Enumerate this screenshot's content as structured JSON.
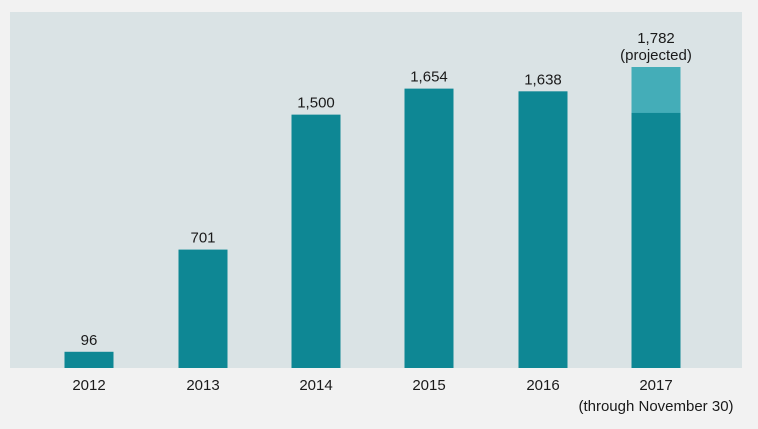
{
  "chart_data": {
    "type": "bar",
    "categories": [
      "2012",
      "2013",
      "2014",
      "2015",
      "2016",
      "2017"
    ],
    "category_sublabels": [
      "",
      "",
      "",
      "",
      "",
      "(through November 30)"
    ],
    "values": [
      96,
      701,
      1500,
      1654,
      1638,
      1782
    ],
    "value_labels": [
      "96",
      "701",
      "1,500",
      "1,654",
      "1,638",
      "1,782"
    ],
    "value_sublabels": [
      "",
      "",
      "",
      "",
      "",
      "(projected)"
    ],
    "actual_2017_estimate": 1510,
    "grid": false,
    "legend": "none",
    "colors": {
      "bar": "#0e8794",
      "projected": "#44adb8",
      "plot_background": "#dae3e5",
      "page_background": "#f2f2f2",
      "text": "#1a1a1a"
    }
  }
}
